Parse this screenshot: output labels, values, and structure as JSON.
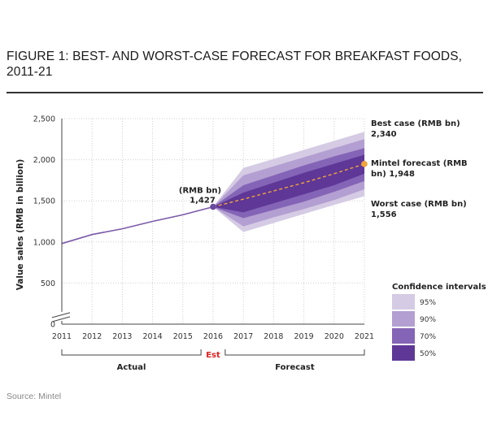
{
  "figure": {
    "title": "FIGURE 1: BEST- AND WORST-CASE FORECAST FOR BREAKFAST FOODS, 2011-21",
    "source": "Source: Mintel"
  },
  "chart_data": {
    "type": "area",
    "title": "FIGURE 1: BEST- AND WORST-CASE FORECAST FOR BREAKFAST FOODS, 2011-21",
    "ylabel": "Value sales (RMB in billion)",
    "xlabel": "",
    "ylim": [
      0,
      2500
    ],
    "yticks": [
      0,
      500,
      1000,
      1500,
      2000,
      2500
    ],
    "ytick_labels": [
      "0",
      "500",
      "1,000",
      "1,500",
      "2,000",
      "2,500"
    ],
    "categories": [
      "2011",
      "2012",
      "2013",
      "2014",
      "2015",
      "2016",
      "2017",
      "2018",
      "2019",
      "2020",
      "2021"
    ],
    "grid": true,
    "actual": {
      "x": [
        2011,
        2012,
        2013,
        2014,
        2015,
        2016
      ],
      "values": [
        980,
        1090,
        1160,
        1250,
        1330,
        1427
      ]
    },
    "forecast": {
      "x": [
        2016,
        2017,
        2018,
        2019,
        2020,
        2021
      ],
      "values": [
        1427,
        1520,
        1620,
        1720,
        1830,
        1948
      ]
    },
    "intervals": [
      {
        "name": "95%",
        "color": "#d5cbe4",
        "upper": [
          1427,
          1900,
          2010,
          2120,
          2230,
          2340
        ],
        "lower": [
          1427,
          1120,
          1230,
          1340,
          1450,
          1556
        ]
      },
      {
        "name": "90%",
        "color": "#b39fd1",
        "upper": [
          1427,
          1810,
          1920,
          2030,
          2140,
          2250
        ],
        "lower": [
          1427,
          1190,
          1300,
          1400,
          1510,
          1640
        ]
      },
      {
        "name": "70%",
        "color": "#8464b6",
        "upper": [
          1427,
          1690,
          1810,
          1930,
          2040,
          2140
        ],
        "lower": [
          1427,
          1290,
          1390,
          1490,
          1610,
          1740
        ]
      },
      {
        "name": "50%",
        "color": "#5e3797",
        "upper": [
          1427,
          1600,
          1720,
          1840,
          1950,
          2060
        ],
        "lower": [
          1427,
          1360,
          1470,
          1580,
          1690,
          1830
        ]
      }
    ],
    "legend": {
      "title": "Confidence intervals",
      "placement": "bottom-right",
      "items": [
        {
          "label": "95%",
          "color": "#d5cbe4"
        },
        {
          "label": "90%",
          "color": "#b39fd1"
        },
        {
          "label": "70%",
          "color": "#8464b6"
        },
        {
          "label": "50%",
          "color": "#5e3797"
        }
      ]
    },
    "annotations": {
      "point_2016": {
        "line1": "(RMB bn)",
        "line2": "1,427",
        "value": 1427
      },
      "best_case": {
        "line1": "Best case (RMB bn)",
        "line2": "2,340",
        "value": 2340
      },
      "mintel_forecast": {
        "line1": "Mintel forecast (RMB",
        "line2": "bn) 1,948",
        "value": 1948
      },
      "worst_case": {
        "line1": "Worst case (RMB bn)",
        "line2": "1,556",
        "value": 1556
      }
    },
    "periods": {
      "actual": "Actual",
      "est": "Est",
      "forecast": "Forecast"
    },
    "colors": {
      "actual_line": "#7a5aa8",
      "forecast_line": "#f2a33a",
      "est_label": "#e02020",
      "point": "#6a4a9e",
      "gridline": "#cfcfcf"
    }
  }
}
